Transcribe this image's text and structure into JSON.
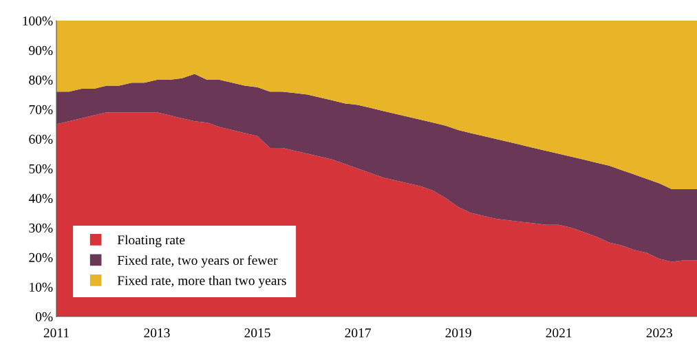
{
  "chart_data": {
    "type": "area",
    "stacked": true,
    "x": [
      2011,
      2011.25,
      2011.5,
      2011.75,
      2012,
      2012.25,
      2012.5,
      2012.75,
      2013,
      2013.25,
      2013.5,
      2013.75,
      2014,
      2014.25,
      2014.5,
      2014.75,
      2015,
      2015.25,
      2015.5,
      2015.75,
      2016,
      2016.25,
      2016.5,
      2016.75,
      2017,
      2017.25,
      2017.5,
      2017.75,
      2018,
      2018.25,
      2018.5,
      2018.75,
      2019,
      2019.25,
      2019.5,
      2019.75,
      2020,
      2020.25,
      2020.5,
      2020.75,
      2021,
      2021.25,
      2021.5,
      2021.75,
      2022,
      2022.25,
      2022.5,
      2022.75,
      2023,
      2023.25,
      2023.5,
      2023.75
    ],
    "series": [
      {
        "name": "Floating rate",
        "color": "#d4343a",
        "values": [
          65,
          66,
          67,
          68,
          69,
          69,
          69,
          69,
          69,
          68,
          67,
          66,
          65.5,
          64,
          63,
          62,
          61,
          57,
          57,
          56,
          55,
          54,
          53,
          51.5,
          50,
          48.5,
          47,
          46,
          45,
          44,
          42.5,
          40,
          37,
          35,
          34,
          33,
          32.5,
          32,
          31.5,
          31,
          31,
          30,
          28.5,
          27,
          25,
          24,
          22.5,
          21.5,
          19.5,
          18.5,
          19,
          19
        ]
      },
      {
        "name": "Fixed rate, two years or fewer",
        "color": "#6a3757",
        "values": [
          11,
          10,
          10,
          9,
          9,
          9,
          10,
          10,
          11,
          12,
          13.5,
          16,
          14.5,
          16,
          16,
          16,
          16.5,
          19,
          19,
          19.5,
          20,
          20,
          20,
          20.5,
          21.5,
          22,
          22.5,
          22.5,
          22.5,
          22.5,
          23,
          24.5,
          26,
          27,
          27,
          27,
          26.5,
          26,
          25.5,
          25,
          24,
          24,
          24.5,
          25,
          26,
          25.5,
          25.5,
          25,
          25.5,
          24.5,
          24,
          24
        ]
      },
      {
        "name": "Fixed rate, more than two years",
        "color": "#e8b428",
        "values": [
          24,
          24,
          23,
          23,
          22,
          22,
          21,
          21,
          20,
          20,
          19.5,
          18,
          20,
          20,
          21,
          22,
          22.5,
          24,
          24,
          24.5,
          25,
          26,
          27,
          28,
          28.5,
          29.5,
          30.5,
          31.5,
          32.5,
          33.5,
          34.5,
          35.5,
          37,
          38,
          39,
          40,
          41,
          42,
          43,
          44,
          45,
          46,
          47,
          48,
          49,
          50.5,
          52,
          53.5,
          55,
          57,
          57,
          57
        ]
      }
    ],
    "xlim": [
      2011,
      2023.75
    ],
    "xticks": [
      2011,
      2013,
      2015,
      2017,
      2019,
      2021,
      2023
    ],
    "ylim": [
      0,
      100
    ],
    "yticks": [
      {
        "value": 0,
        "label": "0%"
      },
      {
        "value": 10,
        "label": "10%"
      },
      {
        "value": 20,
        "label": "20%"
      },
      {
        "value": 30,
        "label": "30%"
      },
      {
        "value": 40,
        "label": "40%"
      },
      {
        "value": 50,
        "label": "50%"
      },
      {
        "value": 60,
        "label": "60%"
      },
      {
        "value": 70,
        "label": "70%"
      },
      {
        "value": 80,
        "label": "80%"
      },
      {
        "value": 90,
        "label": "90%"
      },
      {
        "value": 100,
        "label": "100%"
      }
    ],
    "grid": false,
    "legend": "bottom left"
  }
}
